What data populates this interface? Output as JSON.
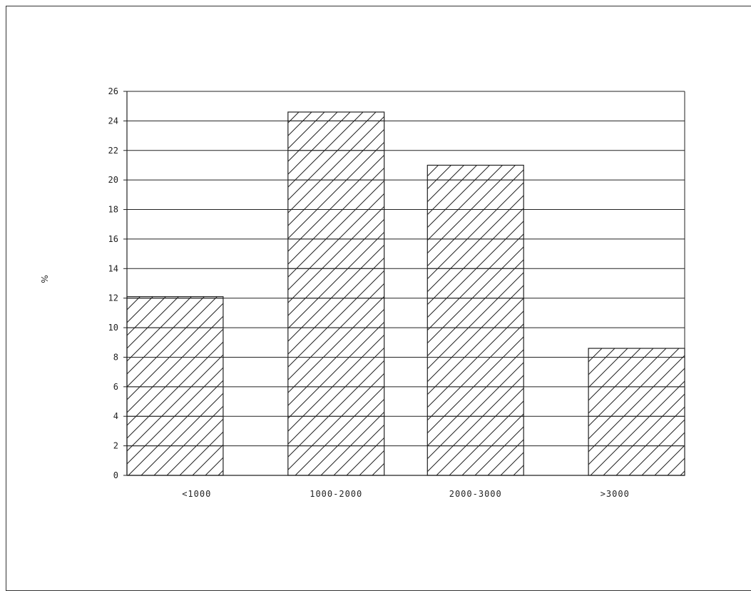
{
  "chart_data": {
    "type": "bar",
    "categories": [
      "<1000",
      "1000-2000",
      "2000-3000",
      ">3000"
    ],
    "values": [
      12.1,
      24.6,
      21.0,
      8.6
    ],
    "title": "",
    "xlabel": "",
    "ylabel": "%",
    "ylim": [
      0,
      26
    ],
    "yticks": [
      "0",
      "2",
      "4",
      "6",
      "8",
      "10",
      "12",
      "14",
      "16",
      "18",
      "20",
      "22",
      "24",
      "26"
    ],
    "grid": "horizontal",
    "bar_fill": "diagonal-hatch",
    "colors": {
      "line": "#222222",
      "background": "#ffffff"
    }
  }
}
